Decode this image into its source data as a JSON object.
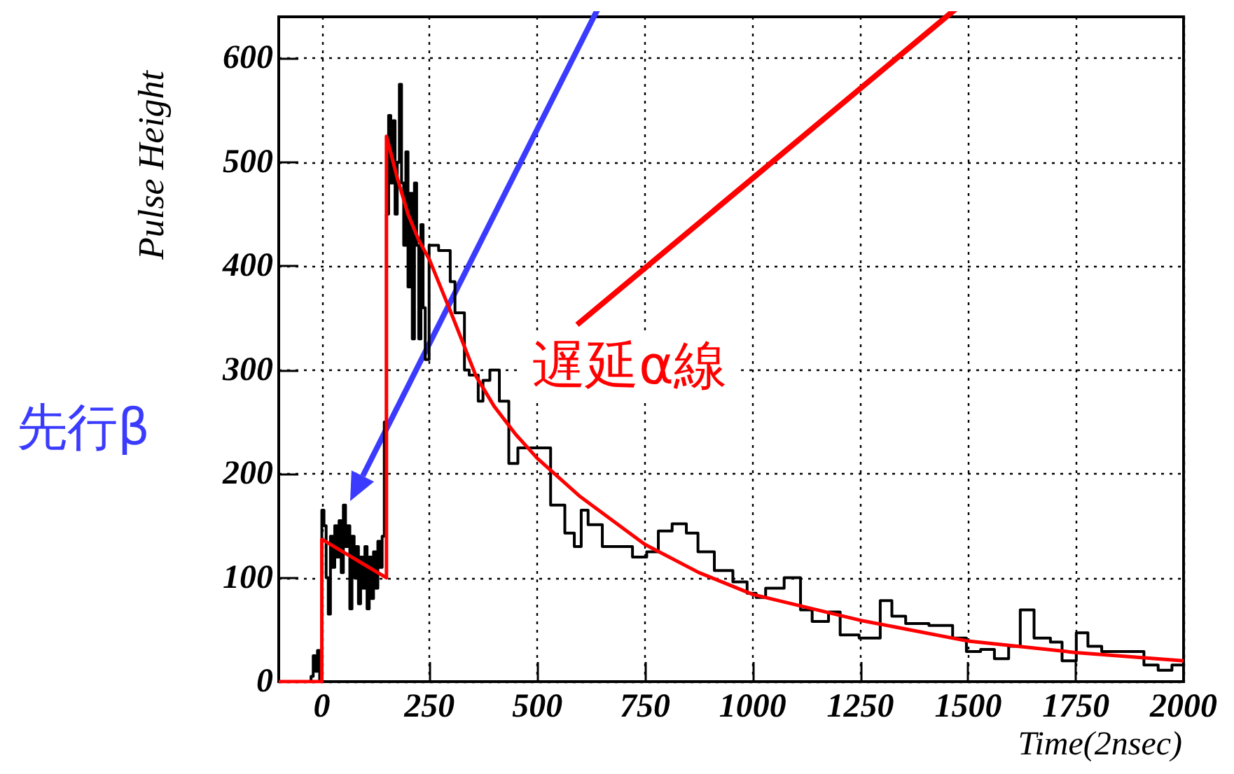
{
  "chart_data": {
    "type": "step",
    "ylabel": "Pulse Height",
    "xlabel": "Time(2nsec)",
    "xlim": [
      -100,
      2000
    ],
    "xticks": [
      0,
      250,
      500,
      750,
      1000,
      1250,
      1500,
      1750,
      2000
    ],
    "ylim": [
      0,
      640
    ],
    "yticks": [
      0,
      100,
      200,
      300,
      400,
      500,
      600
    ],
    "grid": true,
    "annotations": [
      "先行β",
      "遅延α線"
    ],
    "series": [
      {
        "color": "#000000",
        "x": [
          -100,
          -25,
          -20,
          -15,
          -10,
          -5,
          0,
          5,
          10,
          15,
          20,
          25,
          30,
          35,
          40,
          45,
          50,
          55,
          60,
          65,
          70,
          75,
          80,
          85,
          90,
          95,
          100,
          105,
          110,
          115,
          120,
          125,
          130,
          135,
          140,
          145,
          150,
          155,
          160,
          165,
          170,
          175,
          180,
          185,
          190,
          195,
          200,
          205,
          210,
          215,
          220,
          225,
          230,
          235,
          240,
          249,
          271,
          298,
          309,
          331,
          342,
          363,
          374,
          390,
          412,
          434,
          455,
          477,
          488,
          531,
          564,
          586,
          602,
          618,
          651,
          667,
          721,
          754,
          781,
          813,
          846,
          873,
          911,
          954,
          987,
          1008,
          1030,
          1073,
          1111,
          1138,
          1176,
          1203,
          1247,
          1296,
          1323,
          1355,
          1409,
          1464,
          1496,
          1529,
          1561,
          1594,
          1621,
          1653,
          1691,
          1718,
          1751,
          1778,
          1810,
          1908,
          1941,
          1973,
          2000
        ],
        "values": [
          0,
          5,
          25,
          10,
          30,
          0,
          165,
          150,
          100,
          65,
          140,
          110,
          150,
          120,
          155,
          105,
          170,
          130,
          150,
          70,
          140,
          100,
          130,
          75,
          120,
          90,
          130,
          70,
          120,
          80,
          125,
          90,
          135,
          110,
          140,
          250,
          450,
          545,
          480,
          540,
          450,
          500,
          575,
          480,
          420,
          510,
          380,
          470,
          330,
          480,
          420,
          330,
          440,
          360,
          310,
          420,
          415,
          385,
          355,
          300,
          295,
          270,
          290,
          300,
          270,
          210,
          225,
          225,
          225,
          170,
          143,
          130,
          165,
          151,
          130,
          130,
          120,
          125,
          145,
          152,
          143,
          125,
          107,
          96,
          85,
          81,
          90,
          100,
          69,
          58,
          67,
          45,
          42,
          78,
          63,
          56,
          54,
          42,
          29,
          31,
          22,
          34,
          69,
          42,
          38,
          20,
          47,
          34,
          29,
          16,
          11,
          16,
          16
        ]
      },
      {
        "type": "line",
        "color": "#ff0000",
        "x": [
          -100,
          0,
          0,
          150,
          150,
          175,
          200,
          225,
          250,
          300,
          358,
          400,
          450,
          500,
          600,
          750,
          875,
          1000,
          1250,
          1500,
          1750,
          2000
        ],
        "values": [
          0,
          0,
          137,
          100,
          525,
          485,
          450,
          425,
          406,
          355,
          294,
          265,
          238,
          215,
          178,
          132,
          105,
          84,
          59,
          39,
          28,
          20
        ]
      }
    ]
  }
}
